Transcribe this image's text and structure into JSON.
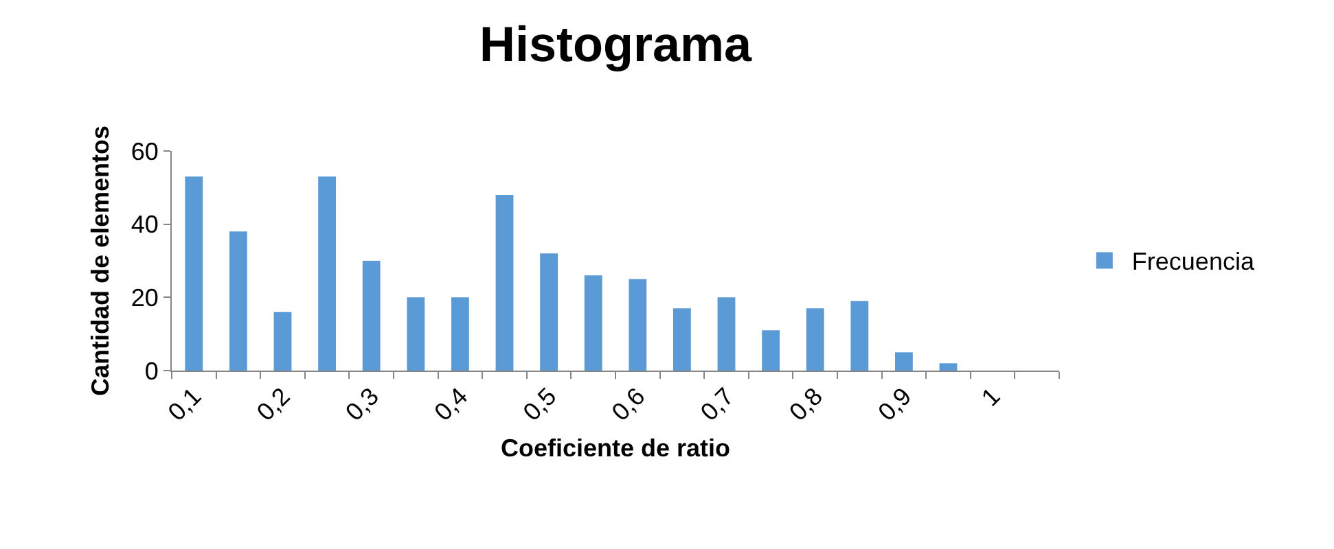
{
  "chart_data": {
    "type": "bar",
    "title": "Histograma",
    "xlabel": "Coeficiente de ratio",
    "ylabel": "Cantidad de elementos",
    "categories": [
      "0,1",
      null,
      "0,2",
      null,
      "0,3",
      null,
      "0,4",
      null,
      "0,5",
      null,
      "0,6",
      null,
      "0,7",
      null,
      "0,8",
      null,
      "0,9",
      null,
      "1",
      null
    ],
    "series": [
      {
        "name": "Frecuencia",
        "color": "#5b9bd5",
        "values": [
          53,
          38,
          16,
          53,
          30,
          20,
          20,
          48,
          32,
          26,
          25,
          17,
          20,
          11,
          17,
          19,
          5,
          2,
          0,
          0
        ]
      }
    ],
    "ylim": [
      0,
      60
    ],
    "yticks": [
      0,
      20,
      40,
      60
    ],
    "grid": false,
    "legend": "right"
  }
}
